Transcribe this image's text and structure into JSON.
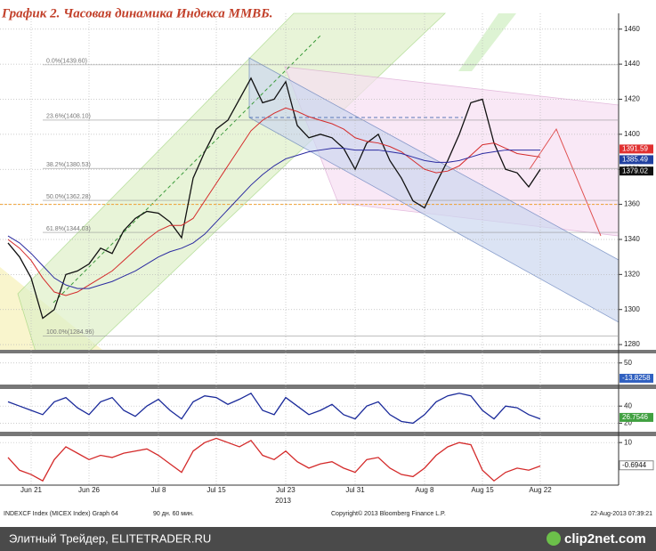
{
  "title": "График 2.   Часовая динамика Индекса ММВБ.",
  "chart_data": [
    {
      "type": "line",
      "categories": [
        null,
        null,
        "Jun 21",
        null,
        null,
        null,
        null,
        "Jun 26",
        null,
        null,
        null,
        null,
        null,
        "Jul 8",
        null,
        null,
        null,
        null,
        "Jul 15",
        null,
        null,
        null,
        null,
        null,
        "Jul 23",
        null,
        null,
        null,
        null,
        null,
        "Jul 31",
        null,
        null,
        null,
        null,
        null,
        "Aug 8",
        null,
        null,
        null,
        null,
        "Aug 15",
        null,
        null,
        null,
        null,
        "Aug 22"
      ],
      "x_axis_label": "2013",
      "series": [
        {
          "color": "#111111",
          "values": [
            1338,
            1330,
            1318,
            1295,
            1300,
            1320,
            1322,
            1326,
            1335,
            1332,
            1345,
            1352,
            1356,
            1355,
            1350,
            1341,
            1375,
            1390,
            1403,
            1408,
            1420,
            1432,
            1418,
            1420,
            1430,
            1405,
            1398,
            1400,
            1398,
            1392,
            1380,
            1395,
            1400,
            1385,
            1375,
            1362,
            1358,
            1372,
            1385,
            1400,
            1418,
            1420,
            1395,
            1380,
            1378,
            1370,
            1380
          ]
        },
        {
          "color": "#d42a2a",
          "values": [
            1340,
            1335,
            1328,
            1318,
            1310,
            1308,
            1310,
            1314,
            1318,
            1322,
            1328,
            1334,
            1340,
            1345,
            1348,
            1348,
            1352,
            1362,
            1372,
            1382,
            1392,
            1402,
            1408,
            1412,
            1415,
            1413,
            1410,
            1408,
            1406,
            1403,
            1398,
            1396,
            1395,
            1393,
            1390,
            1385,
            1380,
            1378,
            1379,
            1382,
            1388,
            1394,
            1395,
            1392,
            1389,
            1388,
            1387
          ]
        },
        {
          "color": "#2a2aa0",
          "values": [
            1342,
            1338,
            1332,
            1325,
            1318,
            1314,
            1312,
            1312,
            1314,
            1316,
            1319,
            1322,
            1326,
            1330,
            1333,
            1335,
            1338,
            1343,
            1350,
            1357,
            1364,
            1371,
            1377,
            1382,
            1386,
            1388,
            1390,
            1391,
            1392,
            1392,
            1391,
            1391,
            1391,
            1390,
            1389,
            1387,
            1385,
            1384,
            1384,
            1385,
            1387,
            1389,
            1390,
            1391,
            1391,
            1391,
            1391
          ]
        }
      ],
      "ylim": [
        1277,
        1469
      ],
      "yticks": [
        1280,
        1300,
        1320,
        1340,
        1360,
        1380,
        1400,
        1420,
        1440,
        1460
      ],
      "fib_levels": [
        {
          "value": 1439.6,
          "label": "0.0%(1439.60)"
        },
        {
          "value": 1408.1,
          "label": "23.6%(1408.10)"
        },
        {
          "value": 1380.53,
          "label": "38.2%(1380.53)"
        },
        {
          "value": 1362.28,
          "label": "50.0%(1362.28)"
        },
        {
          "value": 1344.03,
          "label": "61.8%(1344.03)"
        },
        {
          "value": 1284.96,
          "label": "100.0%(1284.96)"
        }
      ],
      "reference_line": {
        "value": 1360,
        "color": "#f0a030"
      },
      "tags": [
        {
          "value": 1391.59,
          "color": "#e03030"
        },
        {
          "value": 1385.49,
          "color": "#2040a0"
        },
        {
          "value": 1379.02,
          "color": "#111111"
        }
      ]
    },
    {
      "type": "line",
      "series": [],
      "ylim": [
        -40,
        90
      ],
      "yticks": [
        50
      ],
      "tags": [
        {
          "value": -13.8258,
          "color": "#3060c0"
        }
      ]
    },
    {
      "type": "line",
      "series": [
        {
          "color": "#1a2a9a",
          "values": [
            45,
            40,
            35,
            30,
            45,
            50,
            38,
            30,
            45,
            50,
            35,
            28,
            40,
            48,
            35,
            25,
            45,
            52,
            50,
            42,
            48,
            55,
            35,
            30,
            50,
            40,
            30,
            35,
            42,
            30,
            25,
            40,
            45,
            30,
            22,
            20,
            30,
            45,
            52,
            55,
            52,
            35,
            25,
            40,
            38,
            30,
            25
          ]
        }
      ],
      "ylim": [
        10,
        60
      ],
      "yticks": [
        20,
        40
      ],
      "tags": [
        {
          "value": 26.7546,
          "color": "#40a040"
        }
      ]
    },
    {
      "type": "line",
      "series": [
        {
          "color": "#d42a2a",
          "values": [
            3,
            -3,
            -5,
            -8,
            2,
            8,
            5,
            2,
            4,
            3,
            5,
            6,
            7,
            4,
            0,
            -4,
            6,
            10,
            12,
            10,
            8,
            11,
            4,
            2,
            6,
            1,
            -2,
            0,
            1,
            -2,
            -4,
            2,
            3,
            -2,
            -5,
            -6,
            -2,
            4,
            8,
            10,
            9,
            -3,
            -8,
            -4,
            -2,
            -3,
            -1
          ]
        }
      ],
      "ylim": [
        -10,
        13
      ],
      "yticks": [
        10
      ],
      "tags": [
        {
          "value": -0.6944,
          "color": "#ffffff"
        }
      ]
    }
  ],
  "footer": {
    "ticker": "INDEXCF Index (MICEX Index) Graph 64",
    "period": "90 дн. 60 мин.",
    "copyright": "Copyright© 2013 Bloomberg Finance L.P.",
    "timestamp": "22-Aug-2013 07:39:21"
  },
  "watermark": {
    "site": "Элитный Трейдер, ELITETRADER.RU",
    "logo": "clip2net.com"
  }
}
